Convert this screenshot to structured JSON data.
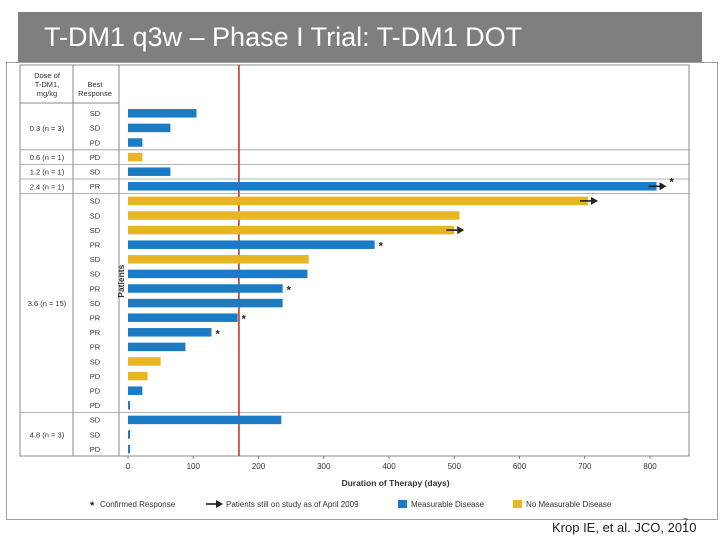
{
  "slide": {
    "title": "T-DM1 q3w – Phase I Trial: T-DM1 DOT",
    "citation": "Krop IE, et al. JCO, 2010",
    "slide_number": "7"
  },
  "chart_data": {
    "type": "bar",
    "orientation": "horizontal",
    "title": "",
    "xlabel": "Duration of Therapy (days)",
    "ylabel": "Patients",
    "xlim": [
      0,
      820
    ],
    "x_ticks": [
      "0",
      "100",
      "200",
      "300",
      "400",
      "500",
      "600",
      "700",
      "800"
    ],
    "header_dose": "Dose of T-DM1, mg/kg",
    "header_response": "Best Response",
    "reference_line_days": 170,
    "colors": {
      "measurable": "#1b7bc4",
      "non_measurable": "#e8b523",
      "reference": "#c0392b",
      "arrow": "#222222"
    },
    "groups": [
      {
        "label": "0.3 (n = 3)",
        "rows": 3
      },
      {
        "label": "0.6 (n = 1)",
        "rows": 1
      },
      {
        "label": "1.2 (n = 1)",
        "rows": 1
      },
      {
        "label": "2.4 (n = 1)",
        "rows": 1
      },
      {
        "label": "3.6 (n = 15)",
        "rows": 15
      },
      {
        "label": "4.8 (n = 3)",
        "rows": 3
      }
    ],
    "patients": [
      {
        "response": "SD",
        "days": 105,
        "disease": "measurable",
        "confirmed": false,
        "ongoing": false
      },
      {
        "response": "SD",
        "days": 65,
        "disease": "measurable",
        "confirmed": false,
        "ongoing": false
      },
      {
        "response": "PD",
        "days": 22,
        "disease": "measurable",
        "confirmed": false,
        "ongoing": false
      },
      {
        "response": "PD",
        "days": 22,
        "disease": "non_measurable",
        "confirmed": false,
        "ongoing": false
      },
      {
        "response": "SD",
        "days": 65,
        "disease": "measurable",
        "confirmed": false,
        "ongoing": false
      },
      {
        "response": "PR",
        "days": 810,
        "disease": "measurable",
        "confirmed": true,
        "ongoing": true
      },
      {
        "response": "SD",
        "days": 705,
        "disease": "non_measurable",
        "confirmed": false,
        "ongoing": true
      },
      {
        "response": "SD",
        "days": 508,
        "disease": "non_measurable",
        "confirmed": false,
        "ongoing": false
      },
      {
        "response": "SD",
        "days": 500,
        "disease": "non_measurable",
        "confirmed": false,
        "ongoing": true
      },
      {
        "response": "PR",
        "days": 378,
        "disease": "measurable",
        "confirmed": true,
        "ongoing": false
      },
      {
        "response": "SD",
        "days": 277,
        "disease": "non_measurable",
        "confirmed": false,
        "ongoing": false
      },
      {
        "response": "SD",
        "days": 275,
        "disease": "measurable",
        "confirmed": false,
        "ongoing": false
      },
      {
        "response": "PR",
        "days": 237,
        "disease": "measurable",
        "confirmed": true,
        "ongoing": false
      },
      {
        "response": "SD",
        "days": 237,
        "disease": "measurable",
        "confirmed": false,
        "ongoing": false
      },
      {
        "response": "PR",
        "days": 168,
        "disease": "measurable",
        "confirmed": true,
        "ongoing": false
      },
      {
        "response": "PR",
        "days": 128,
        "disease": "measurable",
        "confirmed": true,
        "ongoing": false
      },
      {
        "response": "PR",
        "days": 88,
        "disease": "measurable",
        "confirmed": false,
        "ongoing": false
      },
      {
        "response": "SD",
        "days": 50,
        "disease": "non_measurable",
        "confirmed": false,
        "ongoing": false
      },
      {
        "response": "PD",
        "days": 30,
        "disease": "non_measurable",
        "confirmed": false,
        "ongoing": false
      },
      {
        "response": "PD",
        "days": 22,
        "disease": "measurable",
        "confirmed": false,
        "ongoing": false
      },
      {
        "response": "PD",
        "days": 3,
        "disease": "measurable",
        "confirmed": false,
        "ongoing": false
      },
      {
        "response": "SD",
        "days": 235,
        "disease": "measurable",
        "confirmed": false,
        "ongoing": false
      },
      {
        "response": "SD",
        "days": 3,
        "disease": "measurable",
        "confirmed": false,
        "ongoing": false
      },
      {
        "response": "PD",
        "days": 3,
        "disease": "measurable",
        "confirmed": false,
        "ongoing": false
      }
    ],
    "legend": {
      "confirmed": "Confirmed Response",
      "ongoing": "Patients still on study as of April 2009",
      "measurable": "Measurable Disease",
      "non_measurable": "No Measurable Disease"
    },
    "grid": false
  }
}
